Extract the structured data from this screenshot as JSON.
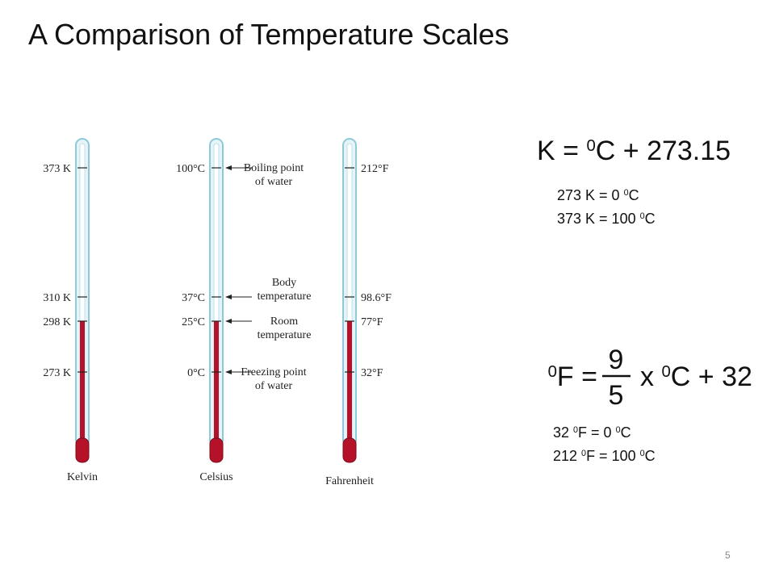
{
  "title": "A Comparison of Temperature Scales",
  "thermometers": [
    {
      "name": "Kelvin",
      "ticks": [
        "373 K",
        "310 K",
        "298 K",
        "273 K"
      ]
    },
    {
      "name": "Celsius",
      "ticks": [
        "100°C",
        "37°C",
        "25°C",
        "0°C"
      ]
    },
    {
      "name": "Fahrenheit",
      "ticks": [
        "212°F",
        "98.6°F",
        "77°F",
        "32°F"
      ]
    }
  ],
  "annotations": [
    [
      "Boiling point",
      "of water"
    ],
    [
      "Body",
      "temperature"
    ],
    [
      "Room",
      "temperature"
    ],
    [
      "Freezing point",
      "of water"
    ]
  ],
  "kelvin_formula": {
    "equation": [
      {
        "text": "K = "
      },
      {
        "text": "0",
        "sup": true
      },
      {
        "text": "C + 273.15"
      }
    ],
    "examples": [
      [
        {
          "text": "273 K = 0 "
        },
        {
          "text": "0",
          "sup": true
        },
        {
          "text": "C"
        }
      ],
      [
        {
          "text": "373 K = 100 "
        },
        {
          "text": "0",
          "sup": true
        },
        {
          "text": "C"
        }
      ]
    ]
  },
  "fahrenheit_formula": {
    "lhs": [
      {
        "text": "0",
        "sup": true
      },
      {
        "text": "F = "
      }
    ],
    "numerator": "9",
    "denominator": "5",
    "rhs": [
      {
        "text": "x "
      },
      {
        "text": "0",
        "sup": true
      },
      {
        "text": "C + 32"
      }
    ],
    "examples": [
      [
        {
          "text": "32 "
        },
        {
          "text": "0",
          "sup": true
        },
        {
          "text": "F = 0 "
        },
        {
          "text": "0",
          "sup": true
        },
        {
          "text": "C"
        }
      ],
      [
        {
          "text": "212 "
        },
        {
          "text": "0",
          "sup": true
        },
        {
          "text": "F = 100 "
        },
        {
          "text": "0",
          "sup": true
        },
        {
          "text": "C"
        }
      ]
    ]
  },
  "page_number": "5"
}
